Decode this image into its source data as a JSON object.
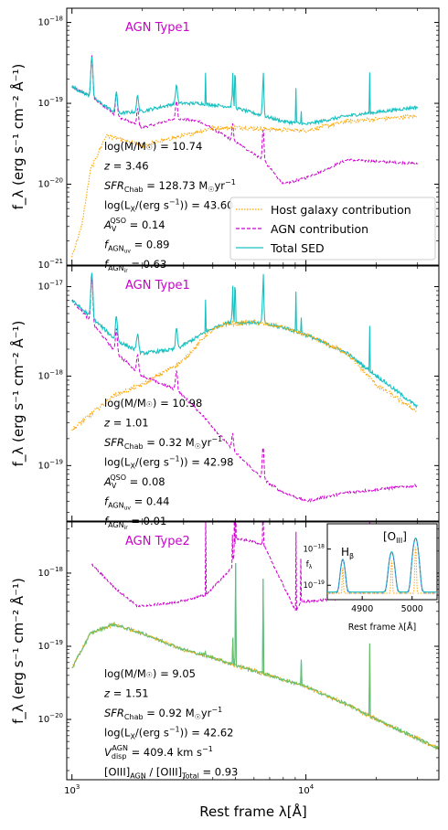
{
  "figure": {
    "xlabel": "Rest frame λ[Å]",
    "xticks": [
      {
        "value": 1000,
        "label": "10",
        "exp": "3"
      },
      {
        "value": 10000,
        "label": "10",
        "exp": "4"
      }
    ],
    "xlim": [
      950,
      37000
    ],
    "xscale": "log",
    "colors": {
      "host": "#ffa500",
      "agn": "#cc00cc",
      "total": "#19c0c0",
      "overlap": "#7cbd52"
    }
  },
  "panels": [
    {
      "title": "AGN Type1",
      "ylabel": "f_λ (erg s⁻¹ cm⁻² Å⁻¹)",
      "yscale": "log",
      "ylim": [
        1e-21,
        1.5e-18
      ],
      "yticks": [
        {
          "value": 1e-21,
          "label": "10",
          "exp": "−21"
        },
        {
          "value": 1e-20,
          "label": "10",
          "exp": "−20"
        },
        {
          "value": 1e-19,
          "label": "10",
          "exp": "−19"
        },
        {
          "value": 1e-18,
          "label": "10",
          "exp": "−18"
        }
      ],
      "params": [
        {
          "type": "logm",
          "value": "10.74"
        },
        {
          "type": "z",
          "value": "3.46"
        },
        {
          "type": "sfr",
          "value": "128.73"
        },
        {
          "type": "logl",
          "value": "43.60"
        },
        {
          "type": "av",
          "value": "0.14"
        },
        {
          "type": "fuv",
          "value": "0.89"
        },
        {
          "type": "fir",
          "value": "0.63"
        }
      ],
      "legend": [
        {
          "label": "Host galaxy contribution",
          "style": "host"
        },
        {
          "label": "AGN contribution",
          "style": "agn"
        },
        {
          "label": "Total SED",
          "style": "total"
        }
      ]
    },
    {
      "title": "AGN Type1",
      "ylabel": "f_λ (erg s⁻¹ cm⁻² Å⁻¹)",
      "yscale": "log",
      "ylim": [
        2.4e-20,
        1.7e-17
      ],
      "yticks": [
        {
          "value": 1e-19,
          "label": "10",
          "exp": "−19"
        },
        {
          "value": 1e-18,
          "label": "10",
          "exp": "−18"
        },
        {
          "value": 1e-17,
          "label": "10",
          "exp": "−17"
        }
      ],
      "params": [
        {
          "type": "logm",
          "value": "10.98"
        },
        {
          "type": "z",
          "value": "1.01"
        },
        {
          "type": "sfr",
          "value": "0.32"
        },
        {
          "type": "logl",
          "value": "42.98"
        },
        {
          "type": "av",
          "value": "0.08"
        },
        {
          "type": "fuv",
          "value": "0.44"
        },
        {
          "type": "fir",
          "value": "0.01"
        }
      ]
    },
    {
      "title": "AGN Type2",
      "ylabel": "f_λ (erg s⁻¹ cm⁻² Å⁻¹)",
      "yscale": "log",
      "ylim": [
        1.5e-21,
        5e-18
      ],
      "yticks": [
        {
          "value": 1e-20,
          "label": "10",
          "exp": "−20"
        },
        {
          "value": 1e-19,
          "label": "10",
          "exp": "−19"
        },
        {
          "value": 1e-18,
          "label": "10",
          "exp": "−18"
        }
      ],
      "params": [
        {
          "type": "logm",
          "value": "9.05"
        },
        {
          "type": "z",
          "value": "1.51"
        },
        {
          "type": "sfr",
          "value": "0.92"
        },
        {
          "type": "logl",
          "value": "42.62"
        },
        {
          "type": "vdisp",
          "value": "409.4"
        },
        {
          "type": "oiii",
          "value": "0.93"
        }
      ],
      "inset": {
        "label_hb": "H",
        "label_hb_sub": "β",
        "label_oiii": "[O",
        "label_oiii_sub": "III",
        "label_oiii_close": "]",
        "ylabel": "f",
        "ylabel_sub": "λ",
        "xlabel": "Rest frame λ[Å]",
        "xlim": [
          4830,
          5050
        ],
        "ylim": [
          4e-20,
          5e-18
        ],
        "xticks": [
          {
            "value": 4900,
            "label": "4900"
          },
          {
            "value": 5000,
            "label": "5000"
          }
        ],
        "yticks": [
          {
            "value": 1e-19,
            "label": "10",
            "exp": "−19"
          },
          {
            "value": 1e-18,
            "label": "10",
            "exp": "−18"
          }
        ]
      }
    }
  ],
  "chart_data": [
    {
      "type": "line",
      "title": "AGN Type1",
      "xlabel": "Rest frame λ[Å]",
      "ylabel": "f_λ (erg s⁻¹ cm⁻² Å⁻¹)",
      "ylim": [
        1e-21,
        1.5e-18
      ],
      "series": [
        {
          "name": "Host galaxy contribution",
          "x": [
            1000,
            1100,
            1200,
            1400,
            2000,
            3000,
            4000,
            5000,
            7000,
            10000,
            15000,
            30000
          ],
          "y": [
            1.3e-21,
            3e-21,
            1.5e-20,
            4e-20,
            3e-20,
            4e-20,
            5e-20,
            5e-20,
            4.8e-20,
            4.6e-20,
            6e-20,
            7e-20
          ]
        },
        {
          "name": "AGN contribution",
          "x": [
            1000,
            1216,
            1549,
            2000,
            2800,
            3500,
            4861,
            6563,
            8000,
            10000,
            15000,
            30000
          ],
          "y": [
            1.6e-19,
            1.2e-19,
            7e-20,
            5e-20,
            6.5e-20,
            6e-20,
            3.5e-20,
            2e-20,
            1e-20,
            1.2e-20,
            2e-20,
            1.8e-20
          ]
        },
        {
          "name": "Total SED",
          "x": [
            1000,
            1216,
            1549,
            2000,
            2800,
            3500,
            4861,
            6563,
            8000,
            10000,
            15000,
            30000
          ],
          "y": [
            1.6e-19,
            1.2e-19,
            7.5e-20,
            8e-20,
            1e-19,
            1e-19,
            9e-20,
            7e-20,
            6e-20,
            5.5e-20,
            7e-20,
            9e-20
          ]
        }
      ]
    },
    {
      "type": "line",
      "title": "AGN Type1",
      "xlabel": "Rest frame λ[Å]",
      "ylabel": "f_λ (erg s⁻¹ cm⁻² Å⁻¹)",
      "ylim": [
        2.4e-20,
        1.7e-17
      ],
      "series": [
        {
          "name": "Host galaxy contribution",
          "x": [
            1000,
            1500,
            2000,
            3000,
            3800,
            4500,
            6000,
            8000,
            10000,
            15000,
            20000,
            30000
          ],
          "y": [
            2.5e-19,
            6e-19,
            8e-19,
            1.5e-18,
            3e-18,
            3.8e-18,
            4e-18,
            3.5e-18,
            2.9e-18,
            1.8e-18,
            8e-19,
            4e-19
          ]
        },
        {
          "name": "AGN contribution",
          "x": [
            1000,
            1216,
            1549,
            2000,
            2800,
            3500,
            4861,
            6563,
            8000,
            10000,
            15000,
            30000
          ],
          "y": [
            7e-18,
            4e-18,
            1.8e-18,
            1e-18,
            7e-19,
            4e-19,
            1.5e-19,
            7e-20,
            5e-20,
            4e-20,
            5e-20,
            6e-20
          ]
        },
        {
          "name": "Total SED",
          "x": [
            1000,
            1216,
            1549,
            2000,
            2800,
            3800,
            4500,
            6000,
            8000,
            10000,
            15000,
            30000
          ],
          "y": [
            7e-18,
            4.5e-18,
            2.5e-18,
            1.8e-18,
            2e-18,
            3.2e-18,
            3.9e-18,
            4e-18,
            3.5e-18,
            2.9e-18,
            1.8e-18,
            4.5e-19
          ]
        }
      ]
    },
    {
      "type": "line",
      "title": "AGN Type2",
      "xlabel": "Rest frame λ[Å]",
      "ylabel": "f_λ (erg s⁻¹ cm⁻² Å⁻¹)",
      "ylim": [
        1.5e-21,
        5e-18
      ],
      "series": [
        {
          "name": "Host galaxy contribution",
          "x": [
            1000,
            1200,
            1500,
            2000,
            3000,
            4000,
            5000,
            7000,
            10000,
            15000,
            20000,
            37000
          ],
          "y": [
            5e-20,
            1.5e-19,
            2e-19,
            1.5e-19,
            9e-20,
            7e-20,
            5.5e-20,
            4e-20,
            2.8e-20,
            1.6e-20,
            1e-20,
            4e-21
          ]
        },
        {
          "name": "AGN contribution",
          "x": [
            1216,
            1549,
            1909,
            2798,
            3727,
            4861,
            5007,
            6563,
            9069,
            9531,
            18750
          ],
          "y": [
            1.3e-18,
            6e-19,
            3.5e-19,
            4e-19,
            5e-19,
            1.2e-18,
            3e-18,
            2.5e-18,
            3e-19,
            4e-19,
            5e-19
          ]
        },
        {
          "name": "Total SED",
          "x": [
            1000,
            1200,
            1500,
            2000,
            3000,
            4000,
            5000,
            7000,
            10000,
            15000,
            20000,
            37000
          ],
          "y": [
            5e-20,
            1.5e-19,
            2e-19,
            1.5e-19,
            9e-20,
            7e-20,
            5.5e-20,
            4e-20,
            2.8e-20,
            1.6e-20,
            1e-20,
            4e-21
          ]
        }
      ]
    }
  ]
}
